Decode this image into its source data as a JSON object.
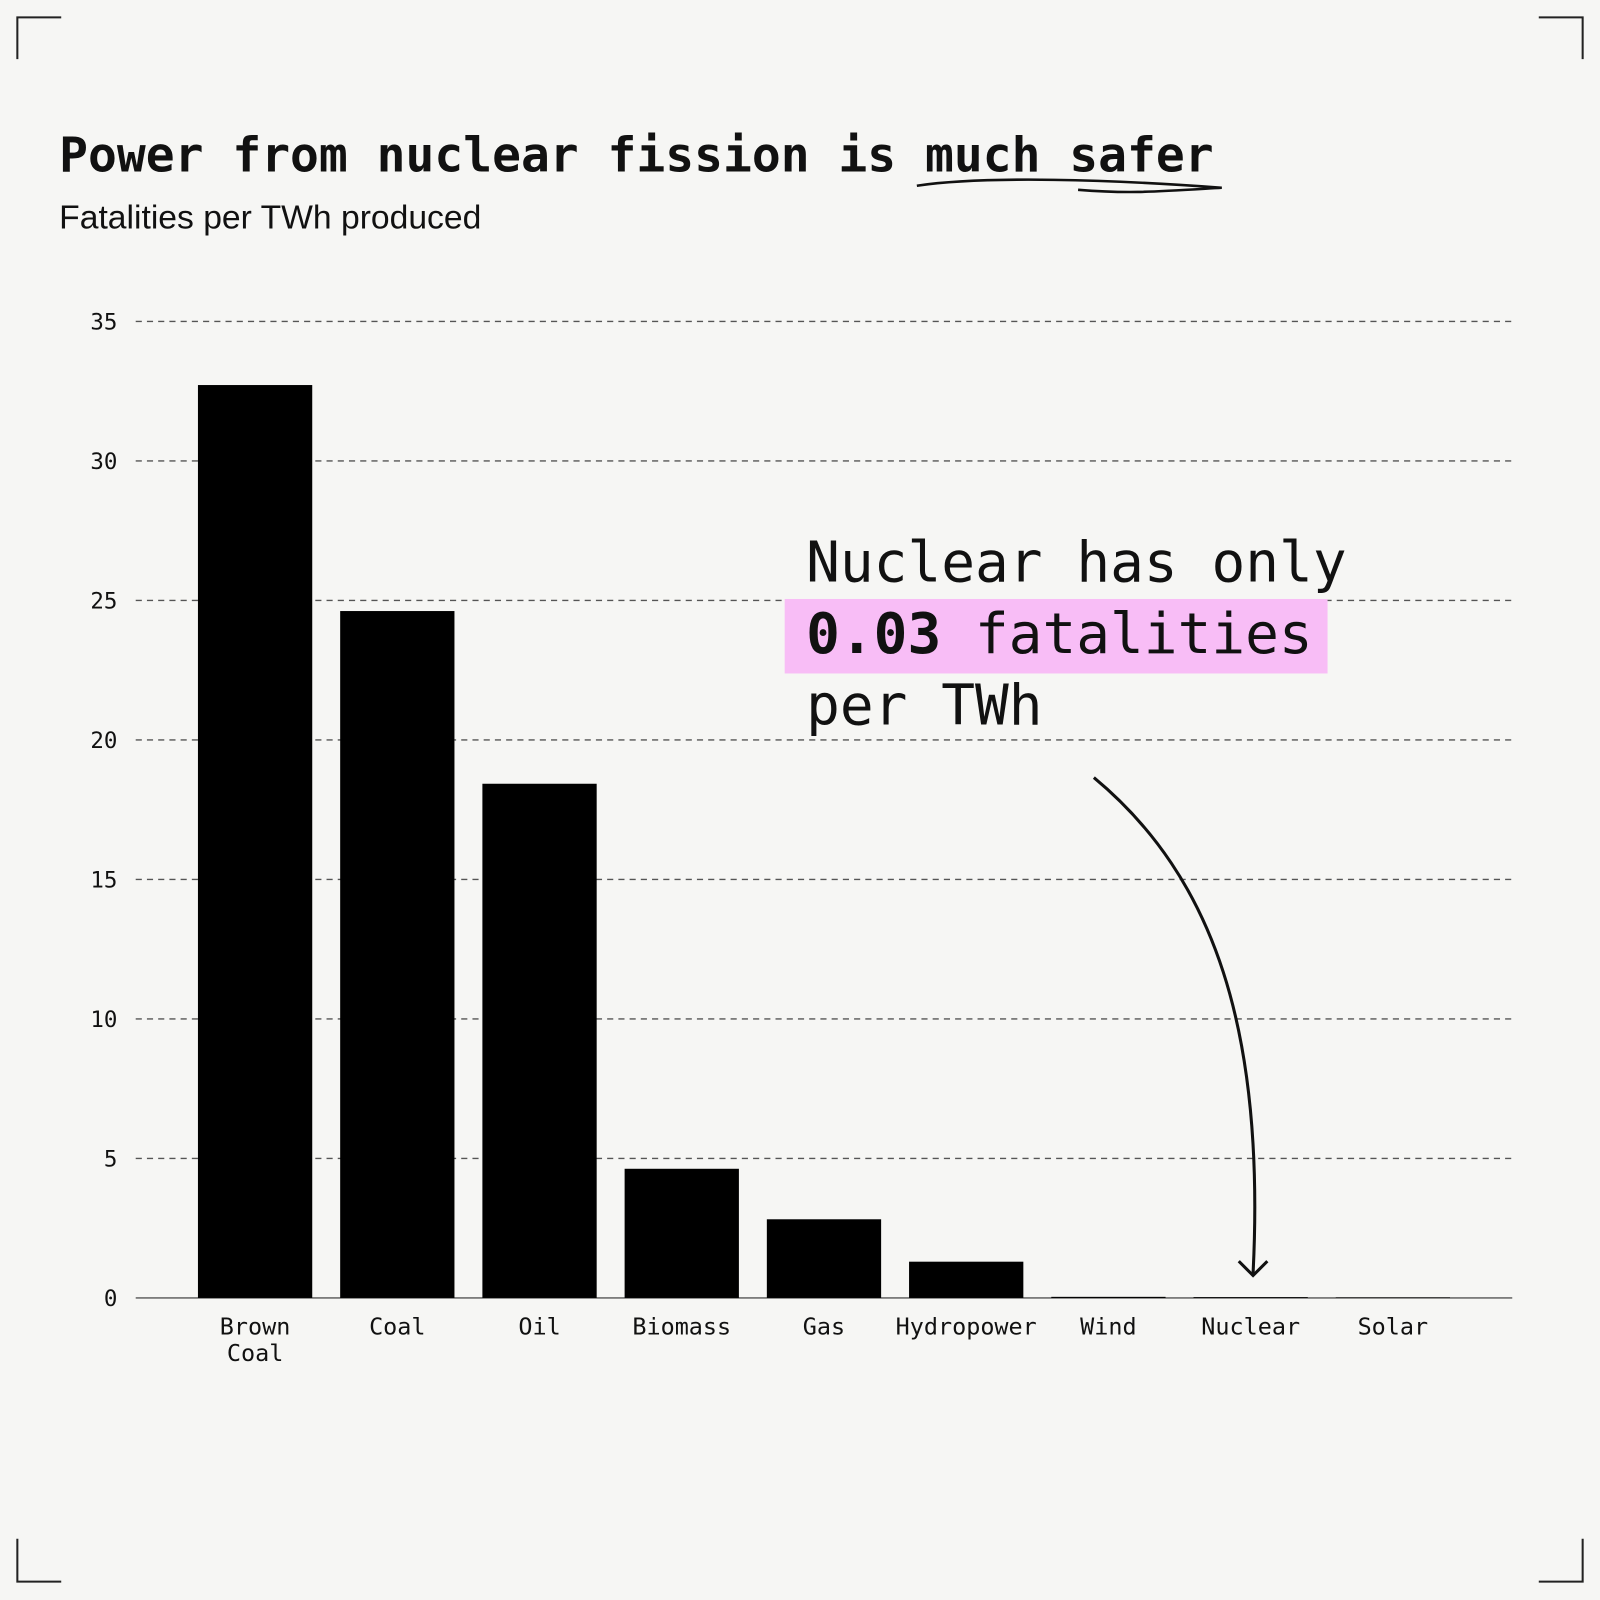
{
  "chart_data": {
    "type": "bar",
    "title": "Power from nuclear fission is much safer",
    "subtitle": "Fatalities per TWh produced",
    "categories": [
      "Brown Coal",
      "Coal",
      "Oil",
      "Biomass",
      "Gas",
      "Hydropower",
      "Wind",
      "Nuclear",
      "Solar"
    ],
    "values": [
      32.72,
      24.62,
      18.43,
      4.63,
      2.82,
      1.3,
      0.04,
      0.03,
      0.02
    ],
    "color": "#000000",
    "ylim": [
      0,
      35
    ],
    "yticks": [
      0,
      5,
      10,
      15,
      20,
      25,
      30,
      35
    ],
    "grid": true,
    "annotation": [
      "Nuclear has only",
      "fatalities",
      "per TWh"
    ],
    "highlight_color": "#f8bdf6"
  }
}
